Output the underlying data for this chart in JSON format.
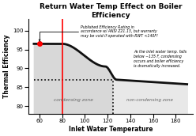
{
  "title": "Return Water Temp Effect on Boiler\nEfficiency",
  "xlabel": "Inlet Water Temperature",
  "ylabel": "Thermal Efficiency",
  "xlim": [
    50,
    195
  ],
  "ylim": [
    78,
    103
  ],
  "xticks": [
    60,
    80,
    100,
    120,
    140,
    160,
    180
  ],
  "yticks": [
    80,
    85,
    90,
    95,
    100
  ],
  "bg_color": "#d8d8d8",
  "non_cond_color": "#e8e8e8",
  "curve_color": "#111111",
  "red_line_x": 80,
  "red_dot_x": 60,
  "red_dot_y": 96.5,
  "dashed_y": 87.0,
  "dashed_x_end": 125,
  "condensing_zone_label": "condensing zone",
  "non_condensing_zone_label": "non-condensing zone",
  "annotation1": "Published Efficiency Rating in\naccordance w/ ANSI Z21.13, but warranty\nmay be void if operated with RWT <140F!",
  "annotation2": "As the inlet water temp. falls\nbelow ~135 F, condensing\noccurs and boiler efficiency\nis dramatically increased."
}
